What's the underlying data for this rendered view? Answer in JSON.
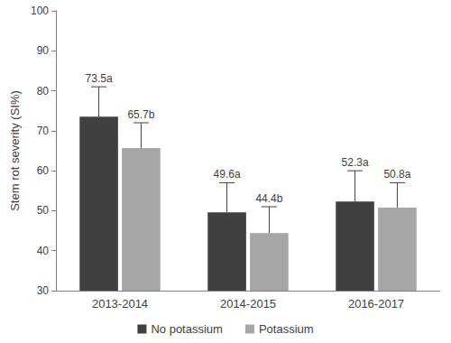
{
  "chart_data": {
    "type": "bar",
    "y_label": "Stem rot severity (SI%)",
    "categories": [
      "2013-2014",
      "2014-2015",
      "2016-2017"
    ],
    "series": [
      {
        "name": "No potassium",
        "color": "#404040",
        "values": [
          73.5,
          49.6,
          52.3
        ],
        "errors": [
          7.5,
          7.4,
          7.7
        ],
        "value_labels": [
          "73.5a",
          "49.6a",
          "52.3a"
        ]
      },
      {
        "name": "Potassium",
        "color": "#a6a6a6",
        "values": [
          65.7,
          44.4,
          50.8
        ],
        "errors": [
          6.3,
          6.6,
          6.2
        ],
        "value_labels": [
          "65.7b",
          "44.4b",
          "50.8a"
        ]
      }
    ],
    "ylim": [
      30,
      100
    ],
    "yticks": [
      30,
      40,
      50,
      60,
      70,
      80,
      90,
      100
    ],
    "grid": false,
    "legend": "bottom",
    "data_labels": true
  }
}
